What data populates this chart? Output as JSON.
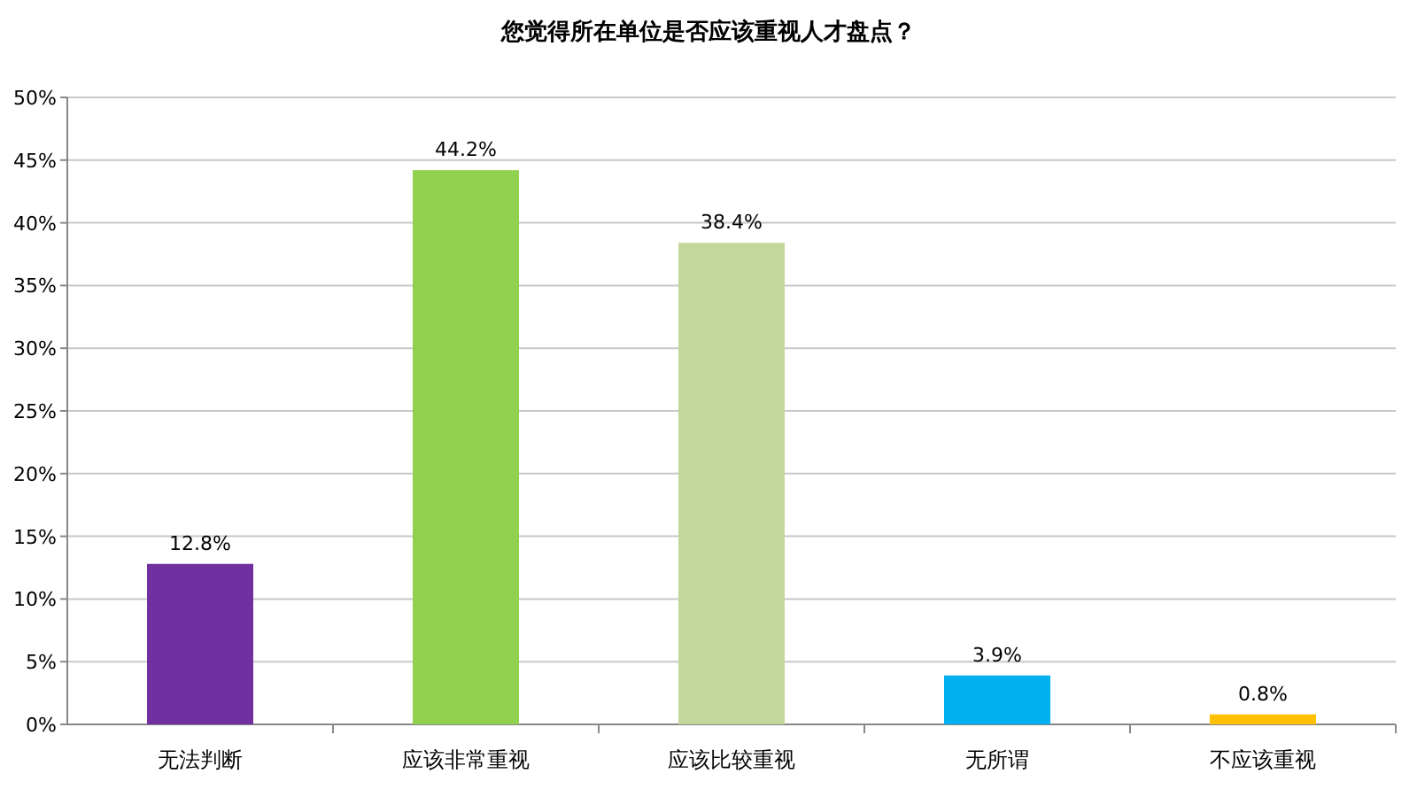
{
  "chart_data": {
    "type": "bar",
    "title": "您觉得所在单位是否应该重视人才盘点？",
    "categories": [
      "无法判断",
      "应该非常重视",
      "应该比较重视",
      "无所谓",
      "不应该重视"
    ],
    "values": [
      12.8,
      44.2,
      38.4,
      3.9,
      0.8
    ],
    "colors": [
      "#7030a0",
      "#92d050",
      "#c4d79b",
      "#00b0f0",
      "#ffc000"
    ],
    "value_labels": [
      "12.8%",
      "44.2%",
      "38.4%",
      "3.9%",
      "0.8%"
    ],
    "ylim": [
      0,
      50
    ],
    "yticks": [
      {
        "value": 0,
        "label": "0%"
      },
      {
        "value": 5,
        "label": "5%"
      },
      {
        "value": 10,
        "label": "10%"
      },
      {
        "value": 15,
        "label": "15%"
      },
      {
        "value": 20,
        "label": "20%"
      },
      {
        "value": 25,
        "label": "25%"
      },
      {
        "value": 30,
        "label": "30%"
      },
      {
        "value": 35,
        "label": "35%"
      },
      {
        "value": 40,
        "label": "40%"
      },
      {
        "value": 45,
        "label": "45%"
      },
      {
        "value": 50,
        "label": "50%"
      }
    ],
    "grid": "y"
  }
}
